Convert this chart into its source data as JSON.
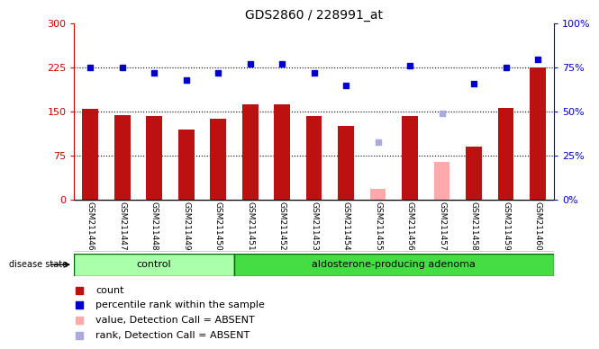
{
  "title": "GDS2860 / 228991_at",
  "samples": [
    "GSM211446",
    "GSM211447",
    "GSM211448",
    "GSM211449",
    "GSM211450",
    "GSM211451",
    "GSM211452",
    "GSM211453",
    "GSM211454",
    "GSM211455",
    "GSM211456",
    "GSM211457",
    "GSM211458",
    "GSM211459",
    "GSM211460"
  ],
  "counts": [
    155,
    145,
    143,
    120,
    138,
    163,
    162,
    143,
    126,
    null,
    143,
    null,
    90,
    157,
    225
  ],
  "counts_absent": [
    null,
    null,
    null,
    null,
    null,
    null,
    null,
    null,
    null,
    18,
    null,
    65,
    null,
    null,
    null
  ],
  "ranks": [
    75,
    75,
    72,
    68,
    72,
    77,
    77,
    72,
    65,
    null,
    76,
    null,
    66,
    75,
    80
  ],
  "ranks_absent": [
    null,
    null,
    null,
    null,
    null,
    null,
    null,
    null,
    null,
    33,
    null,
    49,
    null,
    null,
    null
  ],
  "groups": [
    "control",
    "control",
    "control",
    "control",
    "control",
    "aldosterone-producing adenoma",
    "aldosterone-producing adenoma",
    "aldosterone-producing adenoma",
    "aldosterone-producing adenoma",
    "aldosterone-producing adenoma",
    "aldosterone-producing adenoma",
    "aldosterone-producing adenoma",
    "aldosterone-producing adenoma",
    "aldosterone-producing adenoma",
    "aldosterone-producing adenoma"
  ],
  "ctrl_count": 5,
  "ada_count": 10,
  "bar_color": "#BB1111",
  "bar_absent_color": "#FFAAAA",
  "rank_color": "#0000CC",
  "rank_absent_color": "#AAAADD",
  "ylim_left": [
    0,
    300
  ],
  "ylim_right": [
    0,
    100
  ],
  "yticks_left": [
    0,
    75,
    150,
    225,
    300
  ],
  "ytick_labels_left": [
    "0",
    "75",
    "150",
    "225",
    "300"
  ],
  "yticks_right": [
    0,
    25,
    50,
    75,
    100
  ],
  "ytick_labels_right": [
    "0%",
    "25%",
    "50%",
    "75%",
    "100%"
  ],
  "hlines": [
    75,
    150,
    225
  ],
  "background_color": "#ffffff",
  "tick_area_bg": "#cccccc",
  "ctrl_bg": "#AAFFAA",
  "ada_bg": "#44DD44",
  "legend_items": [
    {
      "label": "count",
      "color": "#BB1111"
    },
    {
      "label": "percentile rank within the sample",
      "color": "#0000CC"
    },
    {
      "label": "value, Detection Call = ABSENT",
      "color": "#FFAAAA"
    },
    {
      "label": "rank, Detection Call = ABSENT",
      "color": "#AAAADD"
    }
  ]
}
